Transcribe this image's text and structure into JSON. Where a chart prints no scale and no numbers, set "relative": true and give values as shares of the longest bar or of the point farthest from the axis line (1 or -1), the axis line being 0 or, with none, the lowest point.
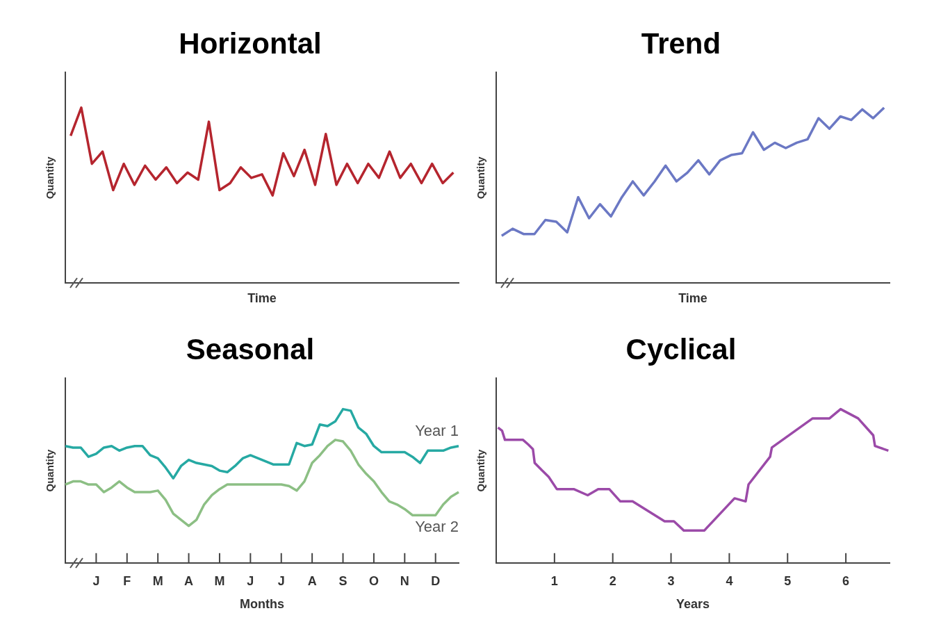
{
  "chart_data": [
    {
      "type": "line",
      "title": "Horizontal",
      "xlabel": "Time",
      "ylabel": "Quantity",
      "relative": true,
      "categories": [
        null,
        null,
        null,
        null,
        null,
        null,
        null,
        null,
        null,
        null,
        null,
        null,
        null,
        null,
        null,
        null,
        null,
        null,
        null,
        null,
        null,
        null,
        null,
        null,
        null,
        null,
        null,
        null,
        null,
        null,
        null,
        null,
        null,
        null,
        null,
        null,
        null
      ],
      "series": [
        {
          "color": "#b5252e",
          "values": [
            0.84,
            1,
            0.68,
            0.75,
            0.53,
            0.68,
            0.56,
            0.67,
            0.59,
            0.66,
            0.57,
            0.63,
            0.59,
            0.92,
            0.53,
            0.57,
            0.66,
            0.6,
            0.62,
            0.5,
            0.74,
            0.61,
            0.76,
            0.56,
            0.85,
            0.56,
            0.68,
            0.57,
            0.68,
            0.6,
            0.75,
            0.6,
            0.68,
            0.57,
            0.68,
            0.57,
            0.63
          ]
        }
      ]
    },
    {
      "type": "line",
      "title": "Trend",
      "xlabel": "Time",
      "ylabel": "Quantity",
      "relative": true,
      "categories": [
        null,
        null,
        null,
        null,
        null,
        null,
        null,
        null,
        null,
        null,
        null,
        null,
        null,
        null,
        null,
        null,
        null,
        null,
        null,
        null,
        null,
        null,
        null,
        null,
        null,
        null,
        null,
        null,
        null,
        null,
        null,
        null,
        null,
        null,
        null,
        null
      ],
      "series": [
        {
          "color": "#6b78c4",
          "values": [
            0.27,
            0.31,
            0.28,
            0.28,
            0.36,
            0.35,
            0.29,
            0.49,
            0.37,
            0.45,
            0.38,
            0.49,
            0.58,
            0.5,
            0.58,
            0.67,
            0.58,
            0.63,
            0.7,
            0.62,
            0.7,
            0.73,
            0.74,
            0.86,
            0.76,
            0.8,
            0.77,
            0.8,
            0.82,
            0.94,
            0.88,
            0.95,
            0.93,
            0.99,
            0.94,
            1
          ]
        }
      ]
    },
    {
      "type": "line",
      "title": "Seasonal",
      "xlabel": "Months",
      "ylabel": "Quantity",
      "relative": true,
      "categories": [
        null,
        null,
        null,
        null,
        "J",
        null,
        null,
        null,
        "F",
        null,
        null,
        null,
        "M",
        null,
        null,
        null,
        "A",
        null,
        null,
        null,
        "M",
        null,
        null,
        null,
        "J",
        null,
        null,
        null,
        "J",
        null,
        null,
        null,
        "A",
        null,
        null,
        null,
        "S",
        null,
        null,
        null,
        "O",
        null,
        null,
        null,
        "N",
        null,
        null,
        null,
        "D",
        null,
        null,
        null
      ],
      "series": [
        {
          "name": "Year 1",
          "color": "#26a9a3",
          "values": [
            0.76,
            0.75,
            0.75,
            0.69,
            0.71,
            0.75,
            0.76,
            0.73,
            0.75,
            0.76,
            0.76,
            0.7,
            0.68,
            0.62,
            0.55,
            0.63,
            0.67,
            0.65,
            0.64,
            0.63,
            0.6,
            0.59,
            0.63,
            0.68,
            0.7,
            0.68,
            0.66,
            0.64,
            0.64,
            0.64,
            0.78,
            0.76,
            0.77,
            0.9,
            0.89,
            0.92,
            1,
            0.99,
            0.88,
            0.84,
            0.76,
            0.72,
            0.72,
            0.72,
            0.72,
            0.69,
            0.65,
            0.73,
            0.73,
            0.73,
            0.75,
            0.76
          ]
        },
        {
          "name": "Year 2",
          "color": "#8cbf84",
          "values": [
            0.51,
            0.53,
            0.53,
            0.51,
            0.51,
            0.46,
            0.49,
            0.53,
            0.49,
            0.46,
            0.46,
            0.46,
            0.47,
            0.41,
            0.32,
            0.28,
            0.24,
            0.28,
            0.38,
            0.44,
            0.48,
            0.51,
            0.51,
            0.51,
            0.51,
            0.51,
            0.51,
            0.51,
            0.51,
            0.5,
            0.47,
            0.53,
            0.65,
            0.7,
            0.76,
            0.8,
            0.79,
            0.73,
            0.64,
            0.58,
            0.53,
            0.46,
            0.4,
            0.38,
            0.35,
            0.31,
            0.31,
            0.31,
            0.31,
            0.38,
            0.43,
            0.46
          ]
        }
      ]
    },
    {
      "type": "line",
      "title": "Cyclical",
      "xlabel": "Years",
      "ylabel": "Quantity",
      "relative": true,
      "xlim": [
        0,
        6.75
      ],
      "xticks": [
        1,
        2,
        3,
        4,
        5,
        6
      ],
      "series": [
        {
          "color": "#9b4aa8",
          "x": [
            0.03,
            0.1,
            0.15,
            0.46,
            0.55,
            0.63,
            0.66,
            0.79,
            0.9,
            1.04,
            1.33,
            1.57,
            1.75,
            1.94,
            2.13,
            2.34,
            2.89,
            3.05,
            3.22,
            3.57,
            4.09,
            4.28,
            4.33,
            4.7,
            4.73,
            5.43,
            5.72,
            5.91,
            6.21,
            6.47,
            6.5,
            6.73
          ],
          "values": [
            0.88,
            0.86,
            0.8,
            0.8,
            0.77,
            0.74,
            0.65,
            0.6,
            0.56,
            0.48,
            0.48,
            0.44,
            0.48,
            0.48,
            0.4,
            0.4,
            0.27,
            0.27,
            0.21,
            0.21,
            0.42,
            0.4,
            0.51,
            0.69,
            0.75,
            0.94,
            0.94,
            1,
            0.94,
            0.83,
            0.76,
            0.73
          ]
        }
      ]
    }
  ]
}
